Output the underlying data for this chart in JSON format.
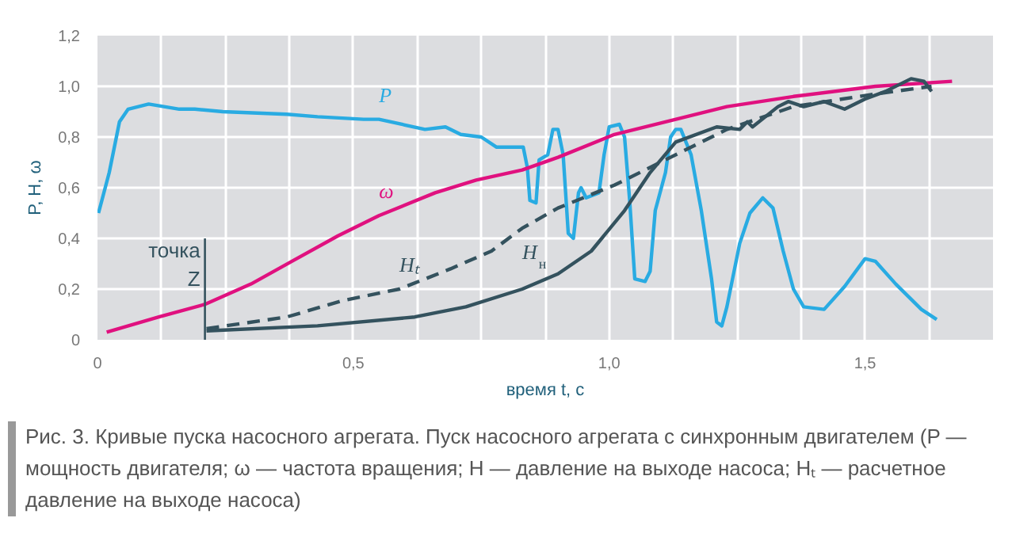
{
  "chart_data": {
    "type": "line",
    "xlabel": "время t, с",
    "ylabel": "P, H, ω",
    "xlim": [
      0,
      1.75
    ],
    "ylim": [
      0,
      1.2
    ],
    "xticks": [
      {
        "value": 0,
        "label": "0"
      },
      {
        "value": 0.125,
        "label": null
      },
      {
        "value": 0.25,
        "label": null
      },
      {
        "value": 0.375,
        "label": null
      },
      {
        "value": 0.5,
        "label": "0,5"
      },
      {
        "value": 0.625,
        "label": null
      },
      {
        "value": 0.75,
        "label": null
      },
      {
        "value": 0.875,
        "label": null
      },
      {
        "value": 1.0,
        "label": "1,0"
      },
      {
        "value": 1.125,
        "label": null
      },
      {
        "value": 1.25,
        "label": null
      },
      {
        "value": 1.375,
        "label": null
      },
      {
        "value": 1.5,
        "label": "1,5"
      },
      {
        "value": 1.625,
        "label": null
      },
      {
        "value": 1.75,
        "label": null
      }
    ],
    "yticks": [
      {
        "value": 0,
        "label": "0"
      },
      {
        "value": 0.2,
        "label": "0,2"
      },
      {
        "value": 0.4,
        "label": "0,4"
      },
      {
        "value": 0.6,
        "label": "0,6"
      },
      {
        "value": 0.8,
        "label": "0,8"
      },
      {
        "value": 1.0,
        "label": "1,0"
      },
      {
        "value": 1.2,
        "label": "1,2"
      }
    ],
    "grid": true,
    "marker": "none",
    "series": [
      {
        "name": "P",
        "color": "#29abe2",
        "line_style": "solid",
        "x": [
          0.002,
          0.023,
          0.043,
          0.06,
          0.1,
          0.16,
          0.19,
          0.245,
          0.37,
          0.43,
          0.52,
          0.55,
          0.64,
          0.68,
          0.71,
          0.75,
          0.78,
          0.81,
          0.832,
          0.84,
          0.845,
          0.857,
          0.863,
          0.88,
          0.89,
          0.9,
          0.91,
          0.92,
          0.93,
          0.94,
          0.945,
          0.955,
          0.98,
          0.99,
          1.0,
          1.02,
          1.03,
          1.04,
          1.05,
          1.07,
          1.08,
          1.09,
          1.11,
          1.12,
          1.13,
          1.14,
          1.16,
          1.18,
          1.2,
          1.21,
          1.22,
          1.23,
          1.255,
          1.275,
          1.3,
          1.32,
          1.34,
          1.36,
          1.38,
          1.42,
          1.46,
          1.5,
          1.52,
          1.56,
          1.61,
          1.64
        ],
        "values": [
          0.5,
          0.66,
          0.86,
          0.91,
          0.93,
          0.91,
          0.91,
          0.9,
          0.89,
          0.88,
          0.87,
          0.87,
          0.83,
          0.84,
          0.81,
          0.8,
          0.76,
          0.76,
          0.76,
          0.68,
          0.55,
          0.54,
          0.71,
          0.73,
          0.83,
          0.83,
          0.73,
          0.42,
          0.4,
          0.58,
          0.6,
          0.56,
          0.58,
          0.73,
          0.84,
          0.85,
          0.8,
          0.55,
          0.24,
          0.23,
          0.27,
          0.51,
          0.66,
          0.8,
          0.83,
          0.83,
          0.73,
          0.51,
          0.24,
          0.07,
          0.055,
          0.13,
          0.38,
          0.5,
          0.56,
          0.52,
          0.35,
          0.2,
          0.13,
          0.12,
          0.21,
          0.32,
          0.31,
          0.22,
          0.12,
          0.08
        ]
      },
      {
        "name": "ω",
        "color": "#e0117f",
        "line_style": "solid",
        "x": [
          0.018,
          0.12,
          0.21,
          0.3,
          0.38,
          0.47,
          0.55,
          0.66,
          0.74,
          0.83,
          0.9,
          1.01,
          1.11,
          1.23,
          1.36,
          1.52,
          1.67
        ],
        "values": [
          0.03,
          0.09,
          0.14,
          0.22,
          0.31,
          0.41,
          0.49,
          0.58,
          0.63,
          0.67,
          0.72,
          0.81,
          0.86,
          0.92,
          0.96,
          1.0,
          1.02
        ]
      },
      {
        "name": "Hₜ",
        "color": "#34525e",
        "line_style": "dashed",
        "x": [
          0.213,
          0.37,
          0.48,
          0.59,
          0.69,
          0.77,
          0.83,
          0.9,
          1.01,
          1.11,
          1.23,
          1.36,
          1.52,
          1.63
        ],
        "values": [
          0.044,
          0.09,
          0.155,
          0.2,
          0.28,
          0.35,
          0.44,
          0.52,
          0.61,
          0.71,
          0.83,
          0.92,
          0.97,
          1.0
        ]
      },
      {
        "name": "H$_{н}$",
        "color": "#34525e",
        "line_style": "solid",
        "x": [
          0.213,
          0.43,
          0.62,
          0.72,
          0.83,
          0.9,
          0.965,
          1.03,
          1.08,
          1.13,
          1.21,
          1.255,
          1.27,
          1.28,
          1.33,
          1.35,
          1.38,
          1.42,
          1.46,
          1.5,
          1.54,
          1.59,
          1.615,
          1.63
        ],
        "values": [
          0.035,
          0.055,
          0.09,
          0.13,
          0.2,
          0.26,
          0.35,
          0.51,
          0.66,
          0.78,
          0.84,
          0.83,
          0.86,
          0.84,
          0.92,
          0.94,
          0.92,
          0.94,
          0.91,
          0.95,
          0.98,
          1.03,
          1.02,
          0.98
        ]
      }
    ],
    "ref_lines": [
      {
        "axis": "x",
        "value": 0.21,
        "label": "точка Z",
        "color": "#34525e",
        "line_style": "solid"
      }
    ],
    "annotations": [
      "Рис. 3. Кривые пуска насосного агрегата. Пуск насосного агрегата с синхронным двигателем (P — мощность двигателя; ω — частота вращения; H — давление на выходе насоса; Hₜ — расчетное давление на выходе насоса)"
    ]
  }
}
